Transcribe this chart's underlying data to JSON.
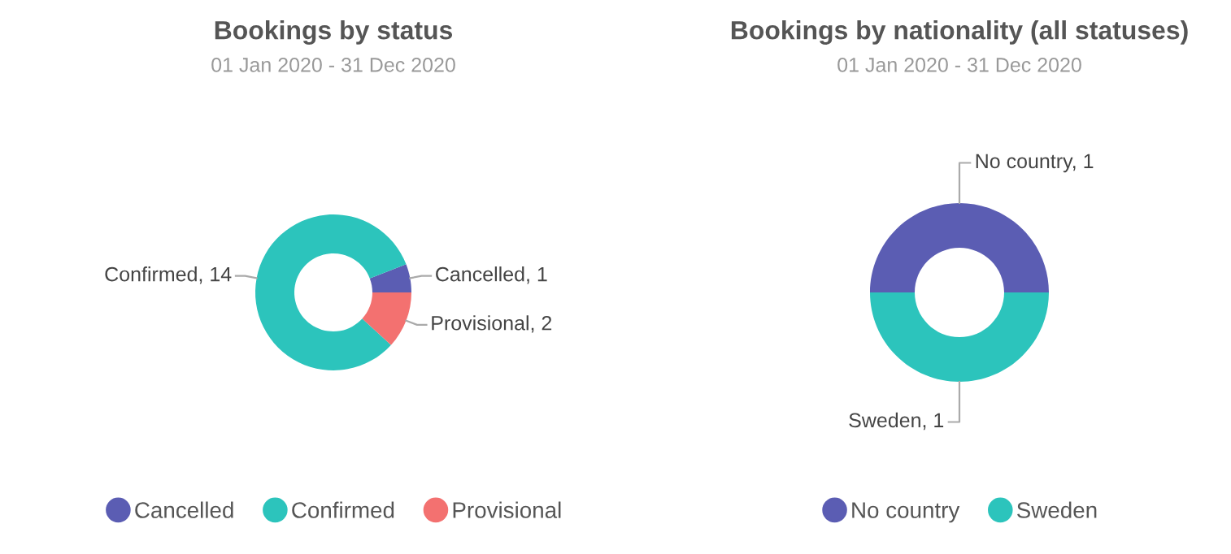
{
  "chart_data": [
    {
      "type": "donut",
      "title": "Bookings by status",
      "subtitle": "01 Jan 2020 - 31 Dec 2020",
      "categories": [
        "Cancelled",
        "Confirmed",
        "Provisional"
      ],
      "values": [
        1,
        14,
        2
      ],
      "colors": [
        "#5b5db3",
        "#2cc4bc",
        "#f37170"
      ],
      "value_labels": [
        "Cancelled, 1",
        "Confirmed, 14",
        "Provisional, 2"
      ],
      "legend": "bottom"
    },
    {
      "type": "donut",
      "title": "Bookings by nationality (all statuses)",
      "subtitle": "01 Jan 2020 - 31 Dec 2020",
      "categories": [
        "No country",
        "Sweden"
      ],
      "values": [
        1,
        1
      ],
      "colors": [
        "#5b5db3",
        "#2cc4bc"
      ],
      "value_labels": [
        "No country, 1",
        "Sweden, 1"
      ],
      "legend": "bottom"
    }
  ]
}
